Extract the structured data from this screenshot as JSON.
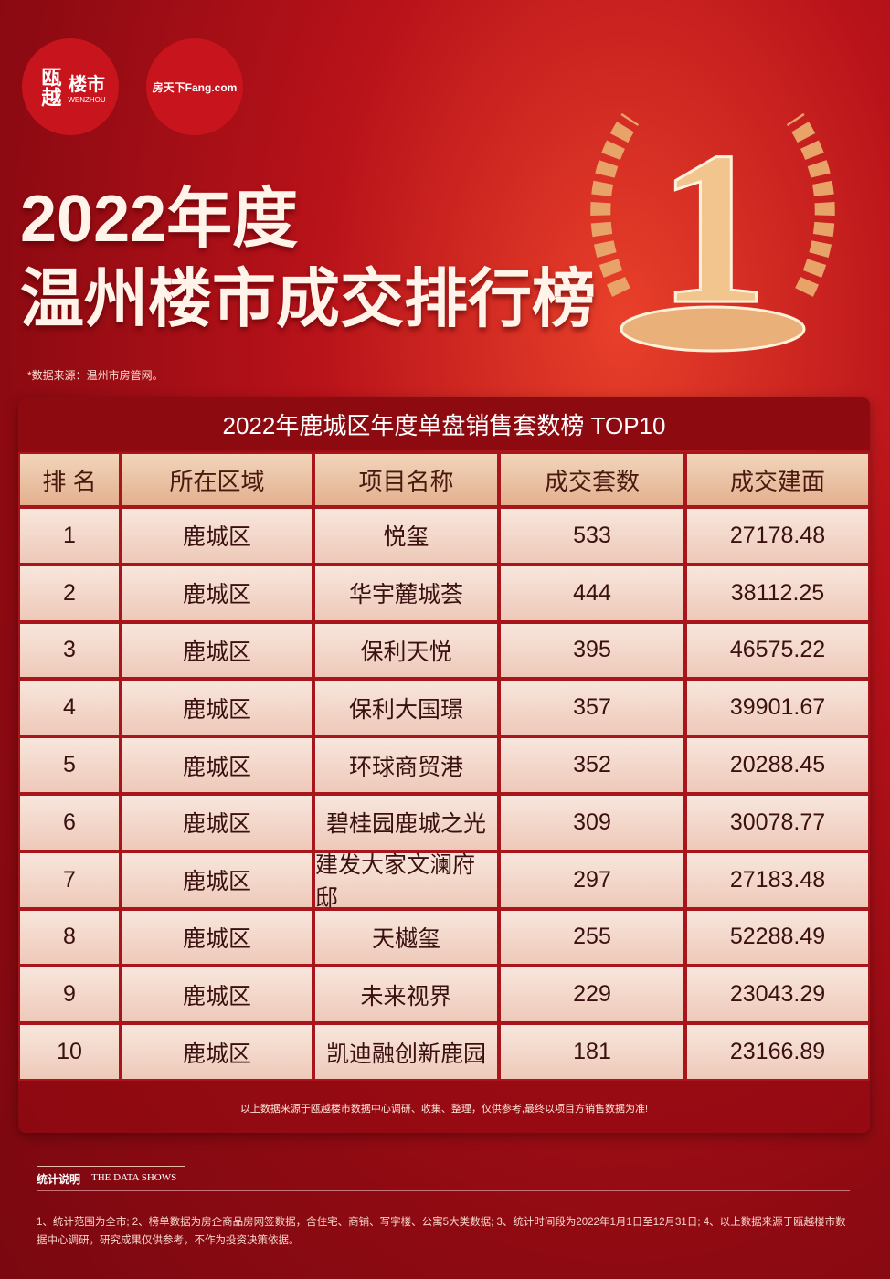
{
  "logos": {
    "primary": {
      "mark": "瓯越",
      "name": "楼市",
      "sub": "WENZHOU"
    },
    "partner": "房天下Fang.com"
  },
  "header": {
    "title_line1": "2022年度",
    "title_line2": "温州楼市成交排行榜",
    "badge": "1",
    "source": "*数据来源：温州市房管网。"
  },
  "table": {
    "title": "2022年鹿城区年度单盘销售套数榜 TOP10",
    "columns": [
      "排 名",
      "所在区域",
      "项目名称",
      "成交套数",
      "成交建面"
    ],
    "rows": [
      [
        1,
        "鹿城区",
        "悦玺",
        533,
        27178.48
      ],
      [
        2,
        "鹿城区",
        "华宇麓城荟",
        444,
        38112.25
      ],
      [
        3,
        "鹿城区",
        "保利天悦",
        395,
        46575.22
      ],
      [
        4,
        "鹿城区",
        "保利大国璟",
        357,
        39901.67
      ],
      [
        5,
        "鹿城区",
        "环球商贸港",
        352,
        20288.45
      ],
      [
        6,
        "鹿城区",
        "碧桂园鹿城之光",
        309,
        30078.77
      ],
      [
        7,
        "鹿城区",
        "建发大家文澜府邸",
        297,
        27183.48
      ],
      [
        8,
        "鹿城区",
        "天樾玺",
        255,
        52288.49
      ],
      [
        9,
        "鹿城区",
        "未来视界",
        229,
        23043.29
      ],
      [
        10,
        "鹿城区",
        "凯迪融创新鹿园",
        181,
        23166.89
      ]
    ],
    "footnote": "以上数据来源于瓯越楼市数据中心调研、收集、整理，仅供参考,最终以项目方销售数据为准!"
  },
  "notes": {
    "heading": "统计说明",
    "heading_en": "THE DATA SHOWS",
    "text": "1、统计范围为全市; 2、榜单数据为房企商品房网签数据，含住宅、商铺、写字楼、公寓5大类数据; 3、统计时间段为2022年1月1日至12月31日; 4、以上数据来源于瓯越楼市数据中心调研，研究成果仅供参考，不作为投资决策依据。"
  }
}
